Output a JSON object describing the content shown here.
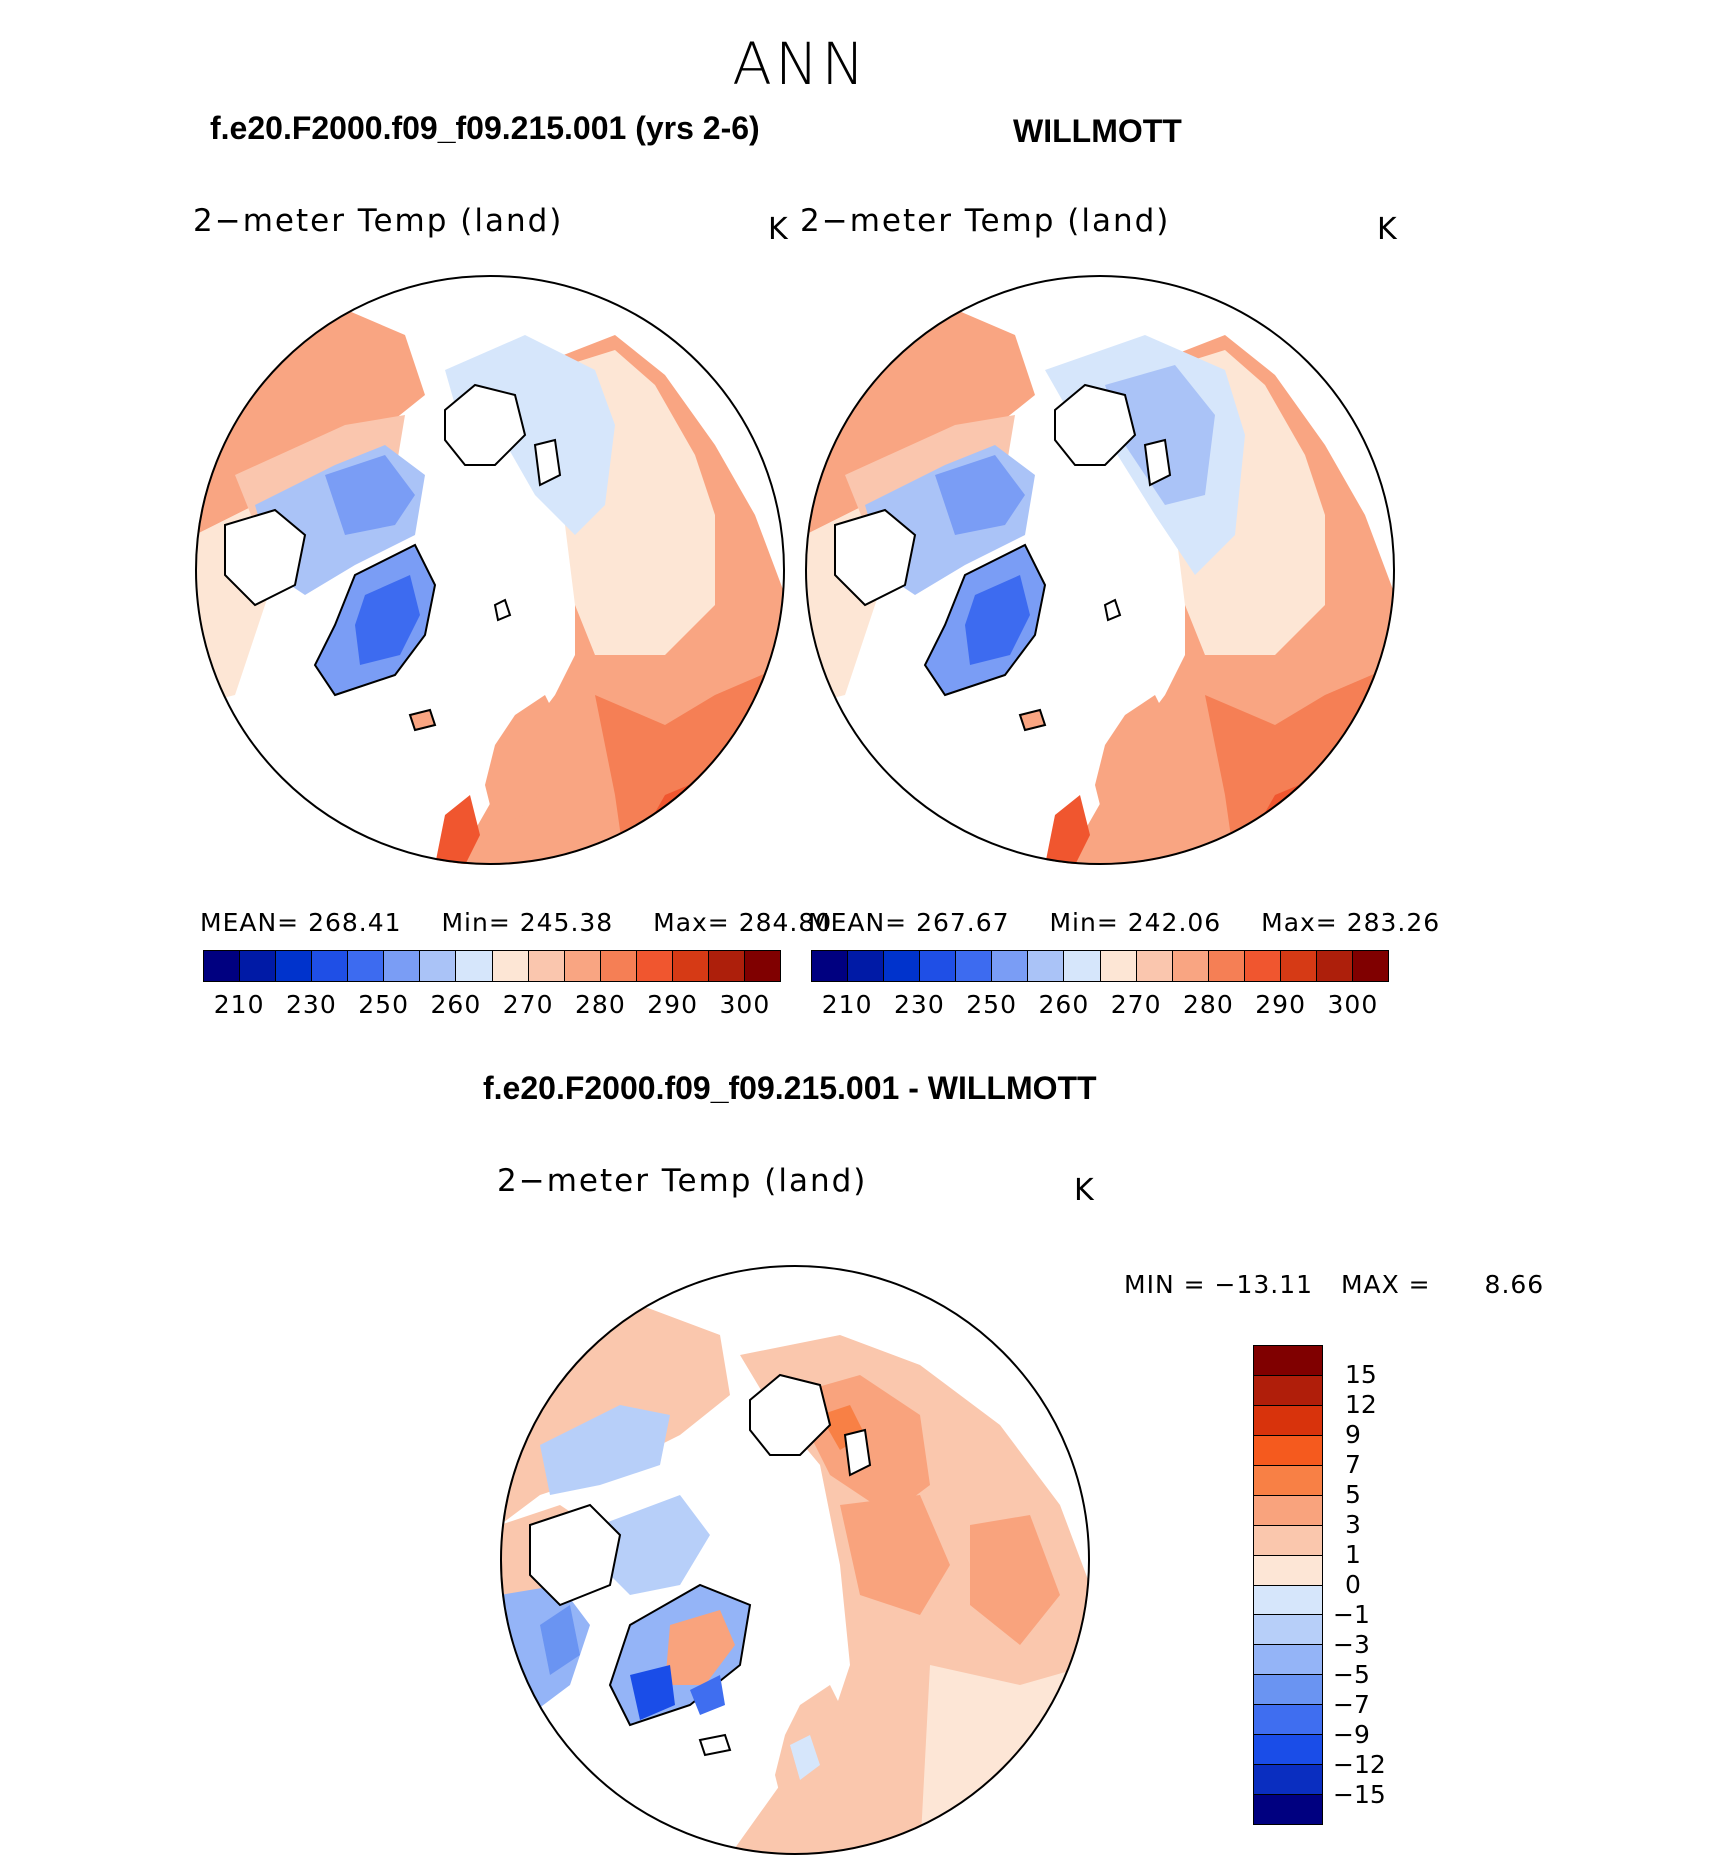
{
  "season": "ANN",
  "panels": [
    {
      "case_title": "f.e20.F2000.f09_f09.215.001 (yrs 2-6)",
      "variable": "2−meter Temp (land)",
      "units": "K",
      "stats": {
        "mean_label": "MEAN=",
        "mean": "268.41",
        "min_label": "Min=",
        "min": "245.38",
        "max_label": "Max=",
        "max": "284.80"
      }
    },
    {
      "case_title": "WILLMOTT",
      "variable": "2−meter Temp (land)",
      "units": "K",
      "stats": {
        "mean_label": "MEAN=",
        "mean": "267.67",
        "min_label": "Min=",
        "min": "242.06",
        "max_label": "Max=",
        "max": "283.26"
      }
    }
  ],
  "abs_colorbar": {
    "colors": [
      "#000080",
      "#001aa6",
      "#0033cc",
      "#1f4fe6",
      "#3d6bf0",
      "#7a9df5",
      "#aac3f7",
      "#d6e6fb",
      "#fde6d5",
      "#fac6ae",
      "#f9a582",
      "#f57f55",
      "#f0562f",
      "#d63a15",
      "#ad1f0b",
      "#800000"
    ],
    "ticks": [
      "210",
      "230",
      "250",
      "260",
      "270",
      "280",
      "290",
      "300"
    ]
  },
  "diff_panel": {
    "title": "f.e20.F2000.f09_f09.215.001 - WILLMOTT",
    "variable": "2−meter Temp (land)",
    "units": "K",
    "min_label": "MIN =",
    "min": "−13.11",
    "max_label": "MAX =",
    "max": "8.66"
  },
  "diff_colorbar": {
    "colors": [
      "#800000",
      "#b01e0a",
      "#d8330c",
      "#f55a1e",
      "#f88045",
      "#f9a37d",
      "#fac7ad",
      "#fde6d6",
      "#d6e6fb",
      "#b7cff9",
      "#94b4f7",
      "#6a94f2",
      "#3f6ef0",
      "#1a4de8",
      "#0a2ec0",
      "#000080"
    ],
    "ticks": [
      "15",
      "12",
      "9",
      "7",
      "5",
      "3",
      "1",
      "0",
      "−1",
      "−3",
      "−5",
      "−7",
      "−9",
      "−12",
      "−15"
    ]
  },
  "map_colors": {
    "ocean": "#ffffff",
    "coast": "#000000",
    "warm_mid": "#f9a582",
    "warm_light": "#fac6ae",
    "warm_pale": "#fde6d5",
    "warm_strong": "#f0562f",
    "cool_pale": "#d6e6fb",
    "cool_light": "#aac3f7",
    "cool_mid": "#7a9df5",
    "cool_strong": "#3d6bf0"
  }
}
